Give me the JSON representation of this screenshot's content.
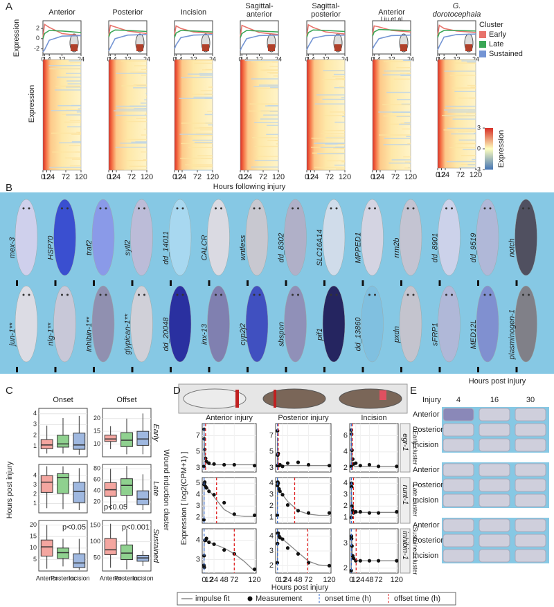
{
  "panel_labels": [
    "A",
    "B",
    "C",
    "D",
    "E"
  ],
  "panel_a": {
    "y_label": "Expression",
    "heatmap_y_label": "Expression",
    "x_label": "Hours following injury",
    "clusters_title": "Cluster",
    "clusters": [
      {
        "name": "Early",
        "color": "#e8736b"
      },
      {
        "name": "Late",
        "color": "#3aa655"
      },
      {
        "name": "Sustained",
        "color": "#7394d4"
      }
    ],
    "line_hours": [
      0,
      1,
      4,
      12,
      24
    ],
    "line_xlim": [
      0,
      24
    ],
    "line_xticks": [
      0,
      1,
      4,
      12,
      24
    ],
    "line_ylim": [
      -3,
      3.5
    ],
    "line_yticks": [
      2,
      0,
      -2
    ],
    "heatmap_xlim": [
      0,
      120
    ],
    "heatmap_xticks": [
      0,
      12,
      24,
      72,
      120
    ],
    "colorbar_label": "Expression",
    "colorbar_lim": [
      -3,
      3
    ],
    "colorbar_ticks": [
      3,
      0,
      -3
    ],
    "charts": [
      {
        "title": [
          "Anterior"
        ],
        "values": [
          [
            0.2,
            2.8,
            2.2,
            1.0,
            0.6
          ],
          [
            0,
            1.0,
            1.6,
            1.5,
            1.2
          ],
          [
            -2.6,
            -2.2,
            -0.3,
            0.5,
            0.6
          ]
        ]
      },
      {
        "title": [
          "Posterior"
        ],
        "values": [
          [
            0.5,
            2.6,
            2.3,
            1.5,
            1.0
          ],
          [
            0.3,
            1.2,
            1.7,
            1.6,
            1.4
          ],
          [
            -2.4,
            -1.8,
            0,
            0.7,
            0.8
          ]
        ]
      },
      {
        "title": [
          "Incision"
        ],
        "values": [
          [
            0.8,
            2.5,
            2.0,
            1.3,
            1.0
          ],
          [
            0.2,
            1.1,
            1.6,
            1.5,
            1.3
          ],
          [
            -2.0,
            -1.2,
            0.2,
            0.7,
            0.8
          ]
        ]
      },
      {
        "title": [
          "Sagittal-",
          "anterior"
        ],
        "values": [
          [
            0.3,
            2.6,
            2.2,
            1.2,
            0.8
          ],
          [
            0.2,
            1.0,
            1.6,
            1.5,
            1.3
          ],
          [
            -2.3,
            -1.6,
            0,
            0.6,
            0.7
          ]
        ]
      },
      {
        "title": [
          "Sagittal-",
          "posterior"
        ],
        "values": [
          [
            0.5,
            2.7,
            2.2,
            1.3,
            0.9
          ],
          [
            0.3,
            1.2,
            1.7,
            1.6,
            1.4
          ],
          [
            -2.2,
            -1.5,
            0.1,
            0.6,
            0.7
          ]
        ]
      },
      {
        "title": [
          "Anterior"
        ],
        "note": "Liu et al",
        "values": [
          [
            0.8,
            2.5,
            2.3,
            1.6,
            1.3
          ],
          [
            0.5,
            1.3,
            1.8,
            1.7,
            1.6
          ],
          [
            -2.0,
            -1.4,
            0,
            0.6,
            0.7
          ]
        ]
      },
      {
        "title": [
          "G.",
          "dorotocephala"
        ],
        "values": [
          [
            0.6,
            2.6,
            2.0,
            1.5,
            1.2
          ],
          [
            0.2,
            1.1,
            1.6,
            1.6,
            1.5
          ],
          [
            -2.2,
            -1.5,
            0.3,
            0.8,
            0.9
          ]
        ]
      }
    ]
  },
  "panel_b": {
    "rows": [
      [
        "mex-3",
        "HSP70",
        "traf2",
        "sytl2",
        "dd_14011",
        "CALCR",
        "wntless",
        "dd_8302",
        "SLC16A14",
        "MPPED1",
        "rrm2b",
        "dd_8901",
        "dd_9519",
        "notch"
      ],
      [
        "jun-1**",
        "nlg-1**",
        "inhibin-1**",
        "glypican-1**",
        "dd_20048",
        "inx-13",
        "cyp2j2",
        "sbspon",
        "pif1",
        "dd_13860",
        "pxdn",
        "sFRP1",
        "MED12L",
        "plasminogen-1"
      ]
    ]
  },
  "panel_c": {
    "columns": [
      "Onset",
      "Offset"
    ],
    "rows": [
      "Early",
      "Late",
      "Sustained"
    ],
    "groups": [
      "Anterior",
      "Posterior",
      "Incision"
    ],
    "colors": [
      "#f4a6a0",
      "#8fd18f",
      "#9fb8e0"
    ],
    "y_label": "Hours post injury",
    "row_axis_label": "Wound induction cluster",
    "plots": [
      [
        {
          "ylim": [
            0,
            4.5
          ],
          "yticks": [
            1,
            2,
            3,
            4
          ],
          "boxes": [
            [
              0.3,
              0.75,
              1.1,
              1.6,
              2.9
            ],
            [
              0.3,
              0.9,
              1.2,
              2.0,
              3.6
            ],
            [
              0.2,
              0.7,
              1.1,
              2.2,
              3.8
            ]
          ]
        },
        {
          "ylim": [
            5,
            24
          ],
          "yticks": [
            10,
            15,
            20
          ],
          "boxes": [
            [
              8,
              11,
              12,
              13.5,
              17
            ],
            [
              6,
              9,
              11.5,
              14.5,
              20
            ],
            [
              6,
              9.5,
              12,
              15,
              22
            ]
          ]
        }
      ],
      [
        {
          "ylim": [
            0,
            5.2
          ],
          "yticks": [
            1,
            2,
            3,
            4
          ],
          "boxes": [
            [
              0.5,
              2.2,
              3.3,
              4.0,
              5
            ],
            [
              0.4,
              2.1,
              3.8,
              4.2,
              5
            ],
            [
              0.3,
              1.1,
              2.3,
              3.3,
              4.8
            ]
          ]
        },
        {
          "ylim": [
            0,
            88
          ],
          "yticks": [
            20,
            40,
            60,
            80
          ],
          "boxes": [
            [
              5,
              30,
              42,
              55,
              80
            ],
            [
              8,
              32,
              50,
              62,
              85
            ],
            [
              5,
              15,
              25,
              40,
              70
            ]
          ],
          "annotation": "p<0.05"
        }
      ],
      [
        {
          "ylim": [
            0,
            22
          ],
          "yticks": [
            5,
            10,
            15,
            20
          ],
          "boxes": [
            [
              1,
              6.5,
              10.5,
              13.5,
              20
            ],
            [
              2,
              5.5,
              8,
              10,
              14
            ],
            [
              0.5,
              1.5,
              3.5,
              7.5,
              14
            ]
          ],
          "annotation": "p<0.05"
        },
        {
          "ylim": [
            10,
            165
          ],
          "yticks": [
            50,
            100,
            150
          ],
          "boxes": [
            [
              20,
              60,
              75,
              110,
              155
            ],
            [
              15,
              45,
              65,
              90,
              140
            ],
            [
              25,
              40,
              50,
              58,
              72
            ]
          ],
          "annotation": "p<0.001"
        }
      ]
    ]
  },
  "panel_d": {
    "columns": [
      "Anterior injury",
      "Posterior injury",
      "Incision"
    ],
    "rows": [
      {
        "gene": "egr-1",
        "cluster": "Early cluster"
      },
      {
        "gene": "runt-1",
        "cluster": "Late cluster"
      },
      {
        "gene": "inhibin-1",
        "cluster": "Sustained cluster"
      }
    ],
    "measurement_hours": [
      0,
      0.5,
      1,
      2,
      4,
      6,
      12,
      24,
      48,
      72,
      120
    ],
    "fit_hours": [
      0,
      0.5,
      1,
      2,
      4,
      8,
      12,
      24,
      48,
      72,
      96,
      120
    ],
    "xlim": [
      -4,
      124
    ],
    "xticks": [
      0,
      12,
      24,
      48,
      72,
      120
    ],
    "y_label": "Expression [ log2(CPM+1) ]",
    "x_label": "Hours post injury",
    "legend": [
      "impulse fit",
      "Measurement",
      "onset time (h)",
      "offset time (h)"
    ],
    "plots": [
      [
        {
          "ylim": [
            2.5,
            8.5
          ],
          "yticks": [
            3,
            5,
            7
          ],
          "measurements": [
            3.2,
            7.8,
            6.6,
            5.3,
            4.2,
            3.8,
            3.6,
            3.5,
            3.4,
            3.4,
            3.3
          ],
          "fit": [
            3.2,
            7.8,
            6.5,
            5.0,
            3.9,
            3.5,
            3.4,
            3.4,
            3.4,
            3.4,
            3.4,
            3.4
          ],
          "onset": 0.3,
          "offset": 4
        },
        {
          "ylim": [
            2.5,
            8.5
          ],
          "yticks": [
            3,
            5,
            7
          ],
          "measurements": [
            3.3,
            7.6,
            4.6,
            4.8,
            3.3,
            3.4,
            3.2,
            3.6,
            3.7,
            3.4,
            3.3
          ],
          "fit": [
            3.3,
            6.8,
            4.8,
            3.5,
            3.3,
            3.3,
            3.3,
            3.3,
            3.3,
            3.3,
            3.3,
            3.3
          ],
          "onset": 0.3,
          "offset": 2
        },
        {
          "ylim": [
            1.5,
            7.5
          ],
          "yticks": [
            2,
            4,
            6
          ],
          "measurements": [
            2.2,
            6.7,
            6.2,
            4.2,
            3.1,
            2.5,
            2.6,
            2.3,
            2.4,
            2.2,
            2.2
          ],
          "fit": [
            2.2,
            6.5,
            5.5,
            3.5,
            2.4,
            2.2,
            2.2,
            2.2,
            2.2,
            2.2,
            2.2,
            2.2
          ],
          "onset": 0.2,
          "offset": 3
        }
      ],
      [
        {
          "ylim": [
            1.5,
            5.5
          ],
          "yticks": [
            2,
            3,
            4,
            5
          ],
          "measurements": [
            1.8,
            4.9,
            5.0,
            5.1,
            4.7,
            4.6,
            4.3,
            4.0,
            3.3,
            2.3,
            2.2
          ],
          "fit": [
            1.8,
            4.6,
            5.0,
            5.0,
            4.9,
            4.7,
            4.4,
            3.8,
            2.7,
            2.2,
            2.1,
            2.1
          ],
          "onset": 0.4,
          "offset": 30
        },
        {
          "ylim": [
            0.5,
            4.5
          ],
          "yticks": [
            1,
            2,
            3,
            4
          ],
          "measurements": [
            1.2,
            3.8,
            4.1,
            4.0,
            3.5,
            3.3,
            3.0,
            2.1,
            1.6,
            1.4,
            1.4
          ],
          "fit": [
            1.2,
            3.9,
            4.0,
            3.8,
            3.5,
            3.3,
            3.0,
            2.4,
            1.6,
            1.3,
            1.2,
            1.2
          ],
          "onset": 0.3,
          "offset": 40
        },
        {
          "ylim": [
            0.5,
            4.5
          ],
          "yticks": [
            1,
            2,
            3,
            4
          ],
          "measurements": [
            1.0,
            4.0,
            3.7,
            2.0,
            1.6,
            1.4,
            1.5,
            1.5,
            1.4,
            1.4,
            1.5
          ],
          "fit": [
            1.0,
            4.0,
            3.2,
            2.0,
            1.5,
            1.45,
            1.45,
            1.45,
            1.45,
            1.45,
            1.45,
            1.45
          ],
          "onset": 0.3,
          "offset": 6
        }
      ],
      [
        {
          "ylim": [
            2.3,
            4.6
          ],
          "yticks": [
            3,
            4
          ],
          "measurements": [
            2.7,
            3.2,
            2.6,
            4.0,
            4.0,
            4.1,
            3.9,
            3.8,
            3.5,
            3.3,
            2.5
          ],
          "fit": [
            2.5,
            3.6,
            3.9,
            4.0,
            4.0,
            3.95,
            3.9,
            3.8,
            3.6,
            3.3,
            2.9,
            2.4
          ],
          "onset": 0.5,
          "offset": 72
        },
        {
          "ylim": [
            1.5,
            4.5
          ],
          "yticks": [
            2,
            3,
            4
          ],
          "measurements": [
            2.2,
            3.5,
            4.2,
            4.2,
            4.0,
            3.9,
            3.8,
            3.2,
            2.8,
            2.2,
            2.0
          ],
          "fit": [
            2.0,
            3.8,
            4.1,
            4.1,
            4.0,
            3.9,
            3.8,
            3.5,
            2.9,
            2.3,
            2.05,
            2.0
          ],
          "onset": 0.4,
          "offset": 70
        },
        {
          "ylim": [
            1.8,
            3.6
          ],
          "yticks": [
            2,
            3
          ],
          "measurements": [
            1.9,
            3.3,
            3.2,
            2.9,
            2.5,
            2.4,
            2.3,
            2.3,
            2.3,
            2.3,
            2.3
          ],
          "fit": [
            1.9,
            3.3,
            3.3,
            3.0,
            2.5,
            2.35,
            2.3,
            2.3,
            2.3,
            2.3,
            2.3,
            2.3
          ],
          "onset": 0.4,
          "offset": 13
        }
      ]
    ]
  },
  "panel_e": {
    "title": "Hours post injury",
    "row_header": "Injury",
    "columns": [
      4,
      16,
      30
    ],
    "rows": [
      "Anterior",
      "Posterior",
      "Incision"
    ]
  }
}
